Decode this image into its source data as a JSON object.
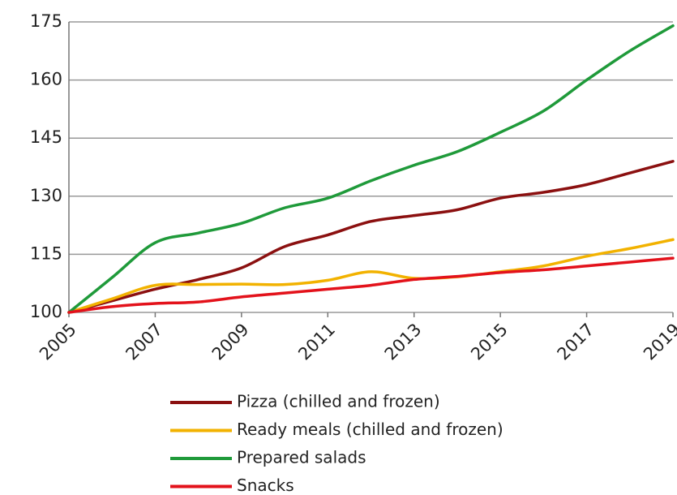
{
  "chart_data": {
    "type": "line",
    "x": [
      2005,
      2006,
      2007,
      2008,
      2009,
      2010,
      2011,
      2012,
      2013,
      2014,
      2015,
      2016,
      2017,
      2018,
      2019
    ],
    "series": [
      {
        "name": "Pizza (chilled and frozen)",
        "color": "#8b1010",
        "values": [
          100,
          103,
          106,
          108.5,
          111.5,
          117,
          120,
          123.5,
          125,
          126.5,
          129.5,
          131,
          133,
          136,
          139
        ]
      },
      {
        "name": "Ready meals (chilled and frozen)",
        "color": "#f2b200",
        "values": [
          100,
          103.5,
          107,
          107.2,
          107.3,
          107.2,
          108.3,
          110.5,
          108.8,
          109.2,
          110.5,
          112,
          114.5,
          116.5,
          118.8
        ]
      },
      {
        "name": "Prepared salads",
        "color": "#1f9a3a",
        "values": [
          100,
          109,
          118,
          120.5,
          123,
          127,
          129.5,
          134,
          138,
          141.5,
          146.5,
          152,
          160,
          167.5,
          174
        ]
      },
      {
        "name": "Snacks",
        "color": "#e3121b",
        "values": [
          100,
          101.5,
          102.3,
          102.7,
          104,
          105,
          106,
          107,
          108.5,
          109.3,
          110.3,
          111,
          112,
          113,
          114
        ]
      }
    ],
    "xlim": [
      2005,
      2019
    ],
    "xticks": [
      2005,
      2007,
      2009,
      2011,
      2013,
      2015,
      2017,
      2019
    ],
    "ylim": [
      100,
      175
    ],
    "yticks": [
      100,
      115,
      130,
      145,
      160,
      175
    ],
    "grid": true,
    "legend": "bottom"
  }
}
